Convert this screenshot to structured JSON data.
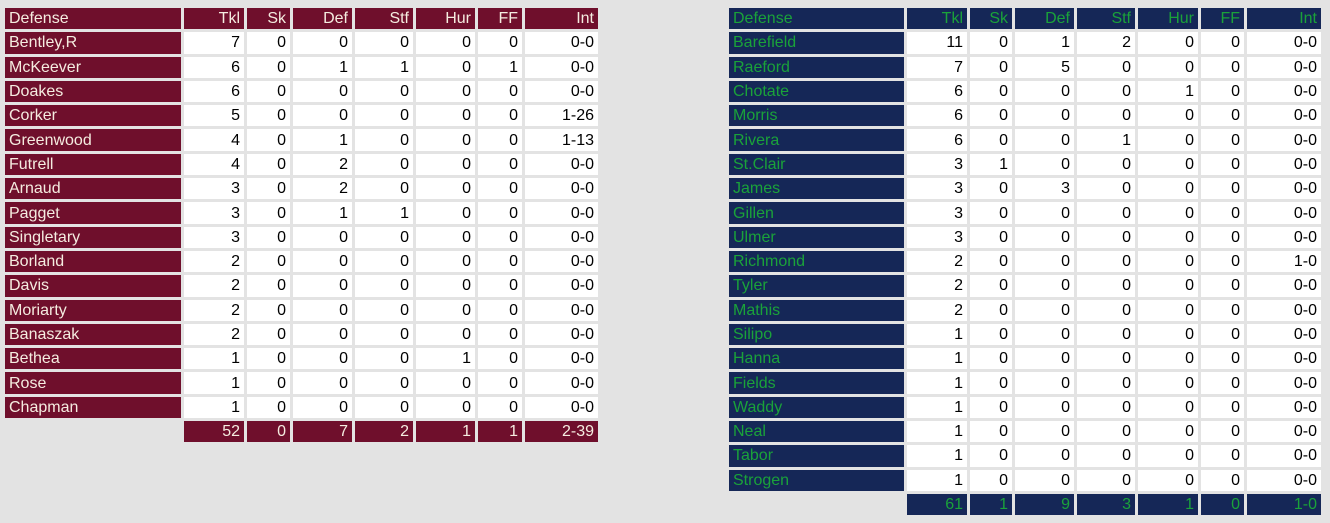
{
  "colors": {
    "home_header_bg": "#6f0f2c",
    "home_header_text": "#f5ece0",
    "away_header_bg": "#152757",
    "away_header_text": "#1aa23a",
    "cell_bg": "#ffffff",
    "page_bg": "#e3e3e3"
  },
  "left": {
    "headers": [
      "Defense",
      "Tkl",
      "Sk",
      "Def",
      "Stf",
      "Hur",
      "FF",
      "Int"
    ],
    "rows": [
      [
        "Bentley,R",
        "7",
        "0",
        "0",
        "0",
        "0",
        "0",
        "0-0"
      ],
      [
        "McKeever",
        "6",
        "0",
        "1",
        "1",
        "0",
        "1",
        "0-0"
      ],
      [
        "Doakes",
        "6",
        "0",
        "0",
        "0",
        "0",
        "0",
        "0-0"
      ],
      [
        "Corker",
        "5",
        "0",
        "0",
        "0",
        "0",
        "0",
        "1-26"
      ],
      [
        "Greenwood",
        "4",
        "0",
        "1",
        "0",
        "0",
        "0",
        "1-13"
      ],
      [
        "Futrell",
        "4",
        "0",
        "2",
        "0",
        "0",
        "0",
        "0-0"
      ],
      [
        "Arnaud",
        "3",
        "0",
        "2",
        "0",
        "0",
        "0",
        "0-0"
      ],
      [
        "Pagget",
        "3",
        "0",
        "1",
        "1",
        "0",
        "0",
        "0-0"
      ],
      [
        "Singletary",
        "3",
        "0",
        "0",
        "0",
        "0",
        "0",
        "0-0"
      ],
      [
        "Borland",
        "2",
        "0",
        "0",
        "0",
        "0",
        "0",
        "0-0"
      ],
      [
        "Davis",
        "2",
        "0",
        "0",
        "0",
        "0",
        "0",
        "0-0"
      ],
      [
        "Moriarty",
        "2",
        "0",
        "0",
        "0",
        "0",
        "0",
        "0-0"
      ],
      [
        "Banaszak",
        "2",
        "0",
        "0",
        "0",
        "0",
        "0",
        "0-0"
      ],
      [
        "Bethea",
        "1",
        "0",
        "0",
        "0",
        "1",
        "0",
        "0-0"
      ],
      [
        "Rose",
        "1",
        "0",
        "0",
        "0",
        "0",
        "0",
        "0-0"
      ],
      [
        "Chapman",
        "1",
        "0",
        "0",
        "0",
        "0",
        "0",
        "0-0"
      ]
    ],
    "totals": [
      "52",
      "0",
      "7",
      "2",
      "1",
      "1",
      "2-39"
    ]
  },
  "right": {
    "headers": [
      "Defense",
      "Tkl",
      "Sk",
      "Def",
      "Stf",
      "Hur",
      "FF",
      "Int"
    ],
    "rows": [
      [
        "Barefield",
        "11",
        "0",
        "1",
        "2",
        "0",
        "0",
        "0-0"
      ],
      [
        "Raeford",
        "7",
        "0",
        "5",
        "0",
        "0",
        "0",
        "0-0"
      ],
      [
        "Chotate",
        "6",
        "0",
        "0",
        "0",
        "1",
        "0",
        "0-0"
      ],
      [
        "Morris",
        "6",
        "0",
        "0",
        "0",
        "0",
        "0",
        "0-0"
      ],
      [
        "Rivera",
        "6",
        "0",
        "0",
        "1",
        "0",
        "0",
        "0-0"
      ],
      [
        "St.Clair",
        "3",
        "1",
        "0",
        "0",
        "0",
        "0",
        "0-0"
      ],
      [
        "James",
        "3",
        "0",
        "3",
        "0",
        "0",
        "0",
        "0-0"
      ],
      [
        "Gillen",
        "3",
        "0",
        "0",
        "0",
        "0",
        "0",
        "0-0"
      ],
      [
        "Ulmer",
        "3",
        "0",
        "0",
        "0",
        "0",
        "0",
        "0-0"
      ],
      [
        "Richmond",
        "2",
        "0",
        "0",
        "0",
        "0",
        "0",
        "1-0"
      ],
      [
        "Tyler",
        "2",
        "0",
        "0",
        "0",
        "0",
        "0",
        "0-0"
      ],
      [
        "Mathis",
        "2",
        "0",
        "0",
        "0",
        "0",
        "0",
        "0-0"
      ],
      [
        "Silipo",
        "1",
        "0",
        "0",
        "0",
        "0",
        "0",
        "0-0"
      ],
      [
        "Hanna",
        "1",
        "0",
        "0",
        "0",
        "0",
        "0",
        "0-0"
      ],
      [
        "Fields",
        "1",
        "0",
        "0",
        "0",
        "0",
        "0",
        "0-0"
      ],
      [
        "Waddy",
        "1",
        "0",
        "0",
        "0",
        "0",
        "0",
        "0-0"
      ],
      [
        "Neal",
        "1",
        "0",
        "0",
        "0",
        "0",
        "0",
        "0-0"
      ],
      [
        "Tabor",
        "1",
        "0",
        "0",
        "0",
        "0",
        "0",
        "0-0"
      ],
      [
        "Strogen",
        "1",
        "0",
        "0",
        "0",
        "0",
        "0",
        "0-0"
      ]
    ],
    "totals": [
      "61",
      "1",
      "9",
      "3",
      "1",
      "0",
      "1-0"
    ]
  }
}
